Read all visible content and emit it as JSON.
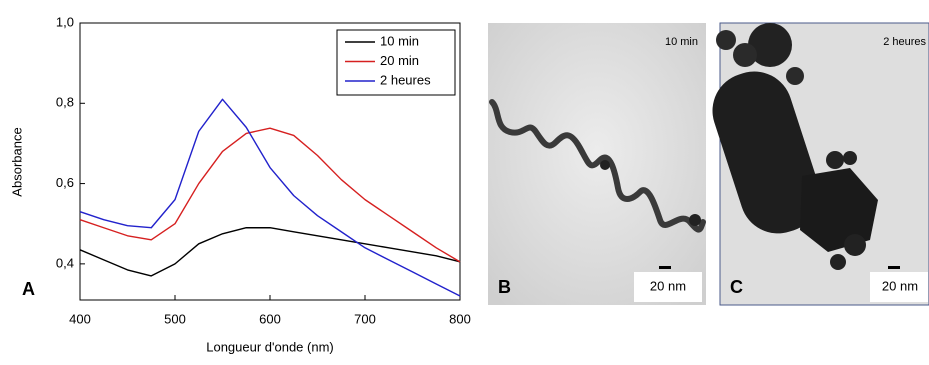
{
  "chart_data": {
    "type": "line",
    "xlabel": "Longueur d'onde (nm)",
    "ylabel": "Absorbance",
    "panel_label": "A",
    "x": [
      400,
      425,
      450,
      475,
      500,
      525,
      550,
      575,
      600,
      625,
      650,
      675,
      700,
      725,
      750,
      775,
      800
    ],
    "series": [
      {
        "name": "10 min",
        "color": "#000000",
        "values": [
          0.435,
          0.41,
          0.385,
          0.37,
          0.4,
          0.45,
          0.475,
          0.49,
          0.49,
          0.48,
          0.47,
          0.46,
          0.45,
          0.44,
          0.43,
          0.42,
          0.405
        ]
      },
      {
        "name": "20 min",
        "color": "#d62020",
        "values": [
          0.51,
          0.49,
          0.47,
          0.46,
          0.5,
          0.6,
          0.68,
          0.725,
          0.738,
          0.72,
          0.67,
          0.61,
          0.56,
          0.52,
          0.48,
          0.44,
          0.405
        ]
      },
      {
        "name": "2 heures",
        "color": "#2222cc",
        "values": [
          0.53,
          0.51,
          0.495,
          0.49,
          0.56,
          0.73,
          0.81,
          0.74,
          0.64,
          0.57,
          0.52,
          0.48,
          0.44,
          0.41,
          0.38,
          0.35,
          0.32
        ]
      }
    ],
    "xlim": [
      400,
      800
    ],
    "xticks": [
      400,
      500,
      600,
      700,
      800
    ],
    "ylim": [
      0.31,
      1.0
    ],
    "yticks": [
      {
        "value": 0.4,
        "label": "0,4"
      },
      {
        "value": 0.6,
        "label": "0,6"
      },
      {
        "value": 0.8,
        "label": "0,8"
      },
      {
        "value": 1.0,
        "label": "1,0"
      }
    ],
    "legend": "top-right"
  },
  "panels": [
    {
      "label": "B",
      "caption": "10 min",
      "scale": "20 nm"
    },
    {
      "label": "C",
      "caption": "2 heures",
      "scale": "20 nm"
    }
  ]
}
